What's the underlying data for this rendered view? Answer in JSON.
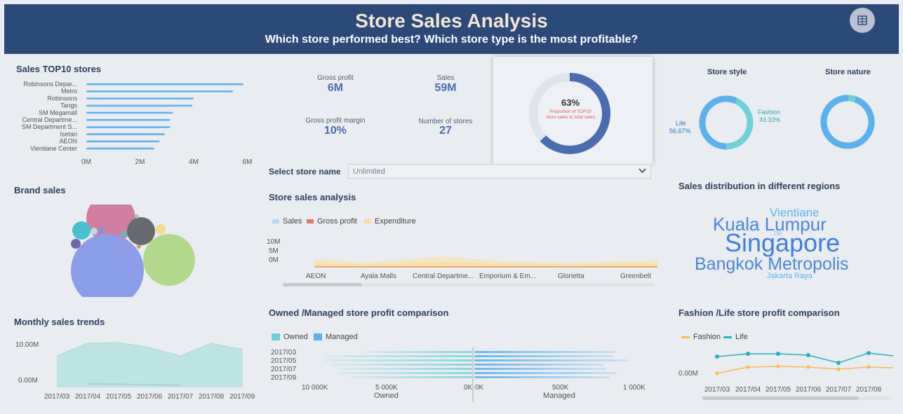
{
  "header": {
    "title": "Store Sales Analysis",
    "subtitle": "Which store performed best? Which store type is the most profitable?"
  },
  "colors": {
    "header_bg": "#2b4a78",
    "accent": "#4a6cb3",
    "bar": "#5ab1ef",
    "owned": "#6dd2d8",
    "managed": "#5ab1ef",
    "fashion": "#ffb84d",
    "life": "#1eb5c0"
  },
  "top10": {
    "title": "Sales TOP10 stores",
    "stores": [
      "Robinsons Depar...",
      "Metro",
      "Robinsons",
      "Tangs",
      "SM Megamall",
      "Central Departme...",
      "SM Department S...",
      "Isetan",
      "AEON",
      "Vientiane Center"
    ],
    "values": [
      6.0,
      5.6,
      4.1,
      4.05,
      3.3,
      3.2,
      3.2,
      3.0,
      2.8,
      2.6
    ],
    "ticks": [
      "0M",
      "2M",
      "4M",
      "6M"
    ],
    "xlim": [
      0,
      6.5
    ]
  },
  "kpis": {
    "gross_profit_label": "Gross profit",
    "gross_profit_value": "6M",
    "sales_label": "Sales",
    "sales_value": "59M",
    "margin_label": "Gross profit margin",
    "margin_value": "10%",
    "stores_label": "Number of stores",
    "stores_value": "27"
  },
  "top10_share": {
    "percent_text": "63%",
    "percent": 0.63,
    "line1": "Proportion of TOP10",
    "line2": "store sales to total sales"
  },
  "store_style": {
    "title": "Store style",
    "life_label": "Life",
    "life_pct": "56.67%",
    "fashion_label": "Fashion",
    "fashion_pct": "43.33%",
    "life": 0.5667
  },
  "store_nature": {
    "title": "Store nature",
    "main": 0.95
  },
  "select": {
    "label": "Select store name",
    "value": "Unlimited"
  },
  "brand_sales": {
    "title": "Brand sales"
  },
  "store_sales": {
    "title": "Store sales analysis",
    "legend": [
      "Sales",
      "Gross profit",
      "Expenditure"
    ],
    "yticks": [
      "10M",
      "5M",
      "0M"
    ],
    "categories": [
      "AEON",
      "Ayala Malls",
      "Central Departme...",
      "Emporium & Em...",
      "Glorietta",
      "Greenbelt"
    ]
  },
  "regions": {
    "title": "Sales distribution in different regions",
    "words": [
      "Vientiane",
      "Kuala Lumpur",
      "Dili",
      "Singapore",
      "Bangkok Metropolis",
      "Jakarta Raya"
    ]
  },
  "monthly": {
    "title": "Monthly sales trends",
    "yticks": [
      "10.00M",
      "0.00M"
    ],
    "months": [
      "2017/03",
      "2017/04",
      "2017/05",
      "2017/06",
      "2017/07",
      "2017/08",
      "2017/09"
    ]
  },
  "owned_managed": {
    "title": "Owned /Managed store profit comparison",
    "legend": [
      "Owned",
      "Managed"
    ],
    "months": [
      "2017/03",
      "2017/05",
      "2017/07",
      "2017/09"
    ],
    "left_ticks": [
      "10 000K",
      "5 000K",
      "0K"
    ],
    "right_ticks": [
      "0K",
      "500K",
      "1 000K"
    ],
    "left_axis": "Owned",
    "right_axis": "Managed"
  },
  "fashion_life": {
    "title": "Fashion /Life store profit comparison",
    "legend": [
      "Fashion",
      "Life"
    ],
    "ytick": "0.00M",
    "months": [
      "2017/03",
      "2017/04",
      "2017/05",
      "2017/06",
      "2017/07",
      "2017/08"
    ]
  }
}
